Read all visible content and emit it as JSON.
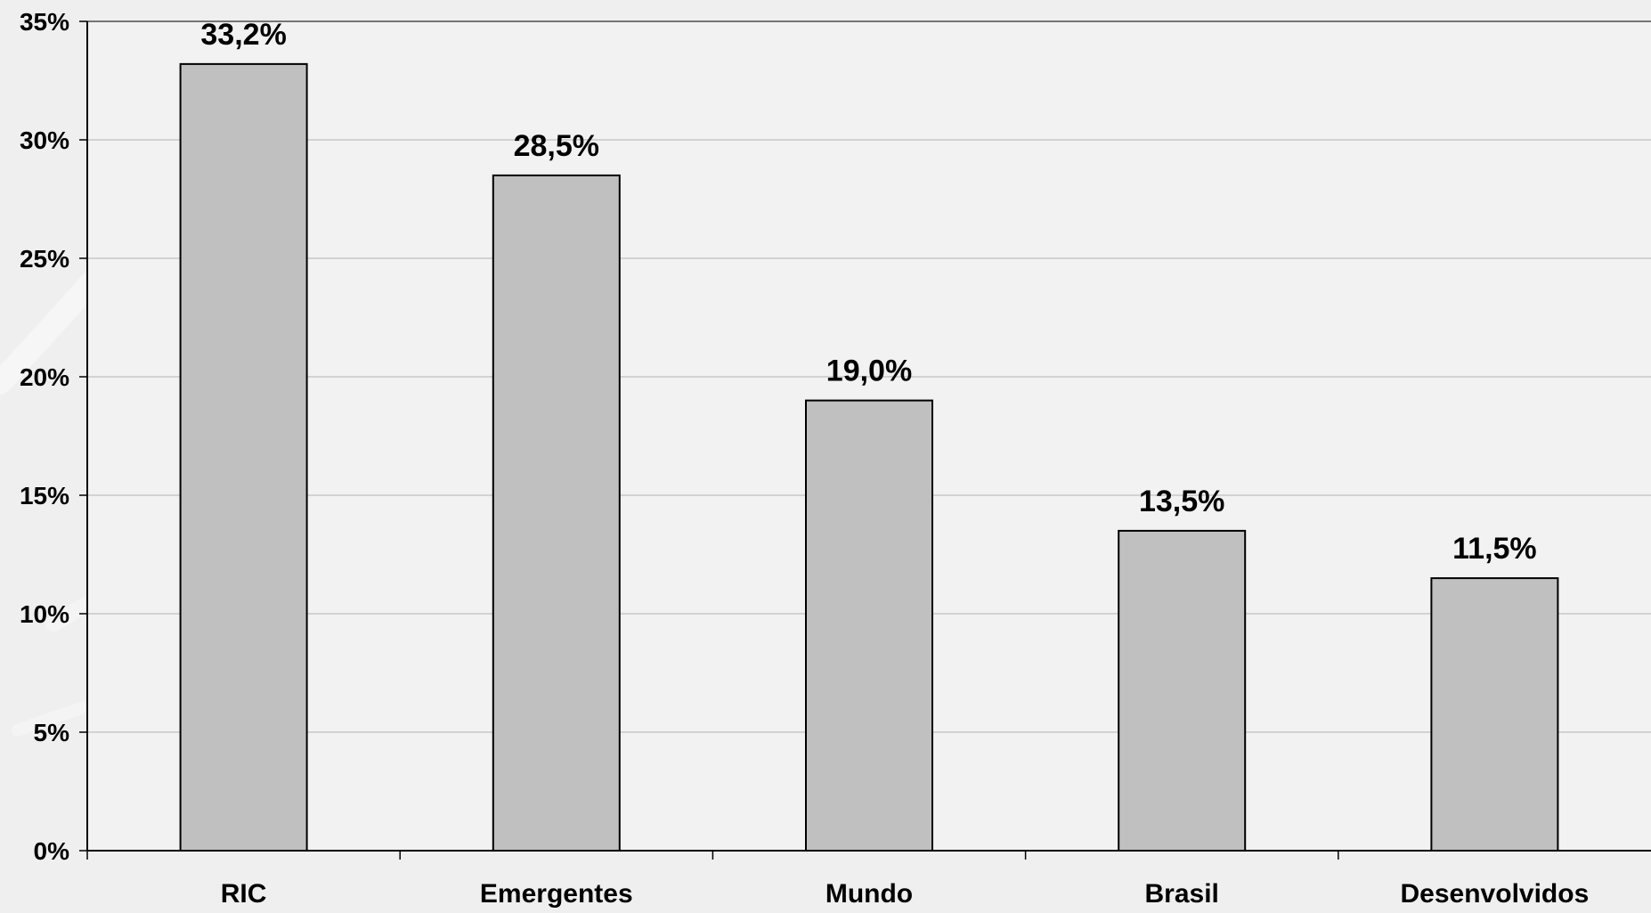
{
  "chart_data": {
    "type": "bar",
    "categories": [
      "RIC",
      "Emergentes",
      "Mundo",
      "Brasil",
      "Desenvolvidos"
    ],
    "values": [
      33.2,
      28.5,
      19.0,
      13.5,
      11.5
    ],
    "data_labels": [
      "33,2%",
      "28,5%",
      "19,0%",
      "13,5%",
      "11,5%"
    ],
    "ylim": [
      0,
      35
    ],
    "yticks": [
      0,
      5,
      10,
      15,
      20,
      25,
      30,
      35
    ],
    "ytick_labels": [
      "0%",
      "5%",
      "10%",
      "15%",
      "20%",
      "25%",
      "30%",
      "35%"
    ],
    "grid": true,
    "legend": "none",
    "colors": {
      "bar_fill": "#c0c0c0",
      "bar_stroke": "#000000",
      "gridline": "#c8c8c8",
      "plot_background": "#efefef",
      "axis": "#000000"
    }
  }
}
